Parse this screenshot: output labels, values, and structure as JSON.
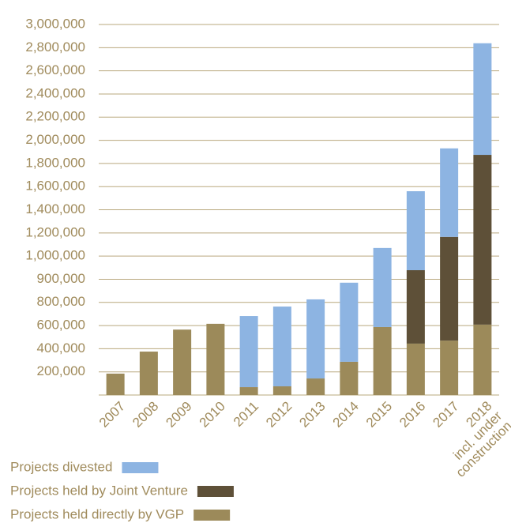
{
  "chart_data": {
    "type": "stacked_bar",
    "categories": [
      "2007",
      "2008",
      "2009",
      "2010",
      "2011",
      "2012",
      "2013",
      "2014",
      "2015",
      "2016",
      "2017",
      "2018\nincl. under\nconstruction"
    ],
    "series": [
      {
        "name": "Projects held directly by VGP",
        "color": "#9c8a5a",
        "values": [
          185000,
          375000,
          565000,
          615000,
          68000,
          75000,
          143000,
          287000,
          587000,
          444000,
          470000,
          608000
        ]
      },
      {
        "name": "Projects held by Joint Venture",
        "color": "#5e5038",
        "values": [
          null,
          null,
          null,
          null,
          null,
          null,
          null,
          null,
          null,
          495000,
          696000,
          1266000
        ]
      },
      {
        "name": "Projects divested",
        "color": "#8db4e2",
        "values": [
          null,
          null,
          null,
          null,
          614000,
          689000,
          670000,
          598000,
          483000,
          621000,
          764000,
          964000
        ]
      }
    ],
    "ylim": [
      0,
      3000000
    ],
    "yticks": [
      {
        "value": 200000,
        "label": "200,000"
      },
      {
        "value": 400000,
        "label": "400,000"
      },
      {
        "value": 600000,
        "label": "600,000"
      },
      {
        "value": 800000,
        "label": "800,000"
      },
      {
        "value": 900000,
        "label": "900,000"
      },
      {
        "value": 1000000,
        "label": "1,000,000"
      },
      {
        "value": 1200000,
        "label": "1,200,000"
      },
      {
        "value": 1400000,
        "label": "1,400,000"
      },
      {
        "value": 1600000,
        "label": "1,600,000"
      },
      {
        "value": 1800000,
        "label": "1,800,000"
      },
      {
        "value": 2000000,
        "label": "2,000,000"
      },
      {
        "value": 2200000,
        "label": "2,200,000"
      },
      {
        "value": 2400000,
        "label": "2,400,000"
      },
      {
        "value": 2600000,
        "label": "2,600,000"
      },
      {
        "value": 2800000,
        "label": "2,800,000"
      },
      {
        "value": 3000000,
        "label": "3,000,000"
      }
    ],
    "grid": true
  }
}
